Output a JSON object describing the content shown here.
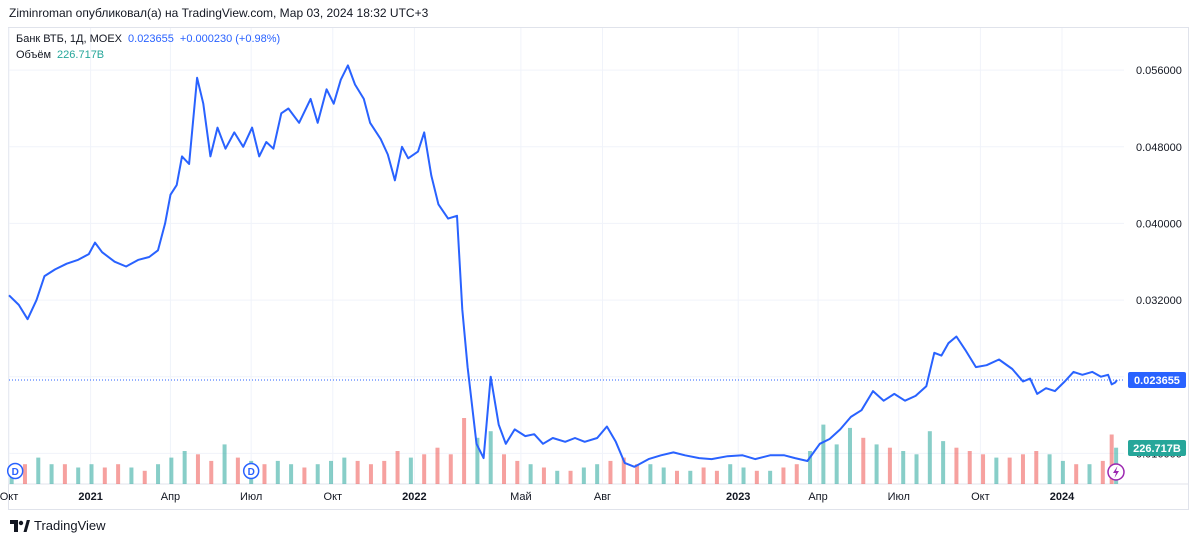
{
  "header": {
    "published_line": "Ziminroman опубликовал(а) на TradingView.com, Мар 03, 2024 18:32 UTC+3"
  },
  "legend": {
    "symbol": "Банк ВТБ, 1Д, MOEX",
    "last_value": "0.023655",
    "change": "+0.000230 (+0.98%)",
    "volume_label": "Объём",
    "volume_value": "226.717B"
  },
  "footer": {
    "brand": "TradingView"
  },
  "colors": {
    "line": "#2962ff",
    "volume_up": "#26a69a",
    "volume_down": "#ef5350",
    "grid": "#f0f3fa",
    "price_tag": "#2962ff",
    "volume_tag": "#26a69a",
    "dividend": "#2962ff",
    "lightning": "#9c27b0"
  },
  "markers": {
    "dividend_letter": "D",
    "dividend_dates": [
      "2020-10-08",
      "2021-07-01"
    ],
    "lightning_icon": "lightning-icon"
  },
  "chart_data": {
    "type": "line",
    "x_axis": {
      "range": [
        "2020-10-01",
        "2024-03-03"
      ],
      "ticks": [
        {
          "date": "2020-10-01",
          "label": "Окт"
        },
        {
          "date": "2021-01-01",
          "label": "2021"
        },
        {
          "date": "2021-04-01",
          "label": "Апр"
        },
        {
          "date": "2021-07-01",
          "label": "Июл"
        },
        {
          "date": "2021-10-01",
          "label": "Окт"
        },
        {
          "date": "2022-01-01",
          "label": "2022"
        },
        {
          "date": "2022-05-01",
          "label": "Май"
        },
        {
          "date": "2022-08-01",
          "label": "Авг"
        },
        {
          "date": "2023-01-01",
          "label": "2023"
        },
        {
          "date": "2023-04-01",
          "label": "Апр"
        },
        {
          "date": "2023-07-01",
          "label": "Июл"
        },
        {
          "date": "2023-10-01",
          "label": "Окт"
        },
        {
          "date": "2024-01-01",
          "label": "2024"
        }
      ]
    },
    "y_axis": {
      "position": "right",
      "range": [
        0.0128,
        0.0604
      ],
      "ticks": [
        "0.016000",
        "0.024000",
        "0.032000",
        "0.040000",
        "0.048000",
        "0.056000"
      ]
    },
    "grid": true,
    "last_price": 0.023655,
    "last_price_label": "0.023655",
    "volume_tag_label": "226.717B",
    "series": [
      {
        "points": [
          [
            "2020-10-01",
            0.0325
          ],
          [
            "2020-10-12",
            0.0315
          ],
          [
            "2020-10-22",
            0.03
          ],
          [
            "2020-11-01",
            0.032
          ],
          [
            "2020-11-10",
            0.0345
          ],
          [
            "2020-11-22",
            0.0352
          ],
          [
            "2020-12-05",
            0.0358
          ],
          [
            "2020-12-18",
            0.0362
          ],
          [
            "2020-12-30",
            0.0368
          ],
          [
            "2021-01-06",
            0.038
          ],
          [
            "2021-01-14",
            0.037
          ],
          [
            "2021-01-28",
            0.036
          ],
          [
            "2021-02-10",
            0.0355
          ],
          [
            "2021-02-24",
            0.0362
          ],
          [
            "2021-03-08",
            0.0365
          ],
          [
            "2021-03-18",
            0.0372
          ],
          [
            "2021-03-26",
            0.04
          ],
          [
            "2021-04-01",
            0.043
          ],
          [
            "2021-04-08",
            0.044
          ],
          [
            "2021-04-14",
            0.047
          ],
          [
            "2021-04-22",
            0.0462
          ],
          [
            "2021-05-01",
            0.0552
          ],
          [
            "2021-05-08",
            0.0525
          ],
          [
            "2021-05-16",
            0.047
          ],
          [
            "2021-05-24",
            0.05
          ],
          [
            "2021-06-02",
            0.0478
          ],
          [
            "2021-06-12",
            0.0495
          ],
          [
            "2021-06-22",
            0.048
          ],
          [
            "2021-07-02",
            0.05
          ],
          [
            "2021-07-10",
            0.047
          ],
          [
            "2021-07-18",
            0.0485
          ],
          [
            "2021-07-26",
            0.0478
          ],
          [
            "2021-08-04",
            0.0515
          ],
          [
            "2021-08-12",
            0.052
          ],
          [
            "2021-08-24",
            0.0505
          ],
          [
            "2021-09-06",
            0.053
          ],
          [
            "2021-09-14",
            0.0505
          ],
          [
            "2021-09-24",
            0.054
          ],
          [
            "2021-10-02",
            0.0525
          ],
          [
            "2021-10-10",
            0.055
          ],
          [
            "2021-10-18",
            0.0565
          ],
          [
            "2021-10-26",
            0.0545
          ],
          [
            "2021-11-05",
            0.053
          ],
          [
            "2021-11-12",
            0.0505
          ],
          [
            "2021-11-24",
            0.0488
          ],
          [
            "2021-12-02",
            0.0472
          ],
          [
            "2021-12-10",
            0.0445
          ],
          [
            "2021-12-18",
            0.048
          ],
          [
            "2021-12-25",
            0.0468
          ],
          [
            "2022-01-05",
            0.0475
          ],
          [
            "2022-01-12",
            0.0495
          ],
          [
            "2022-01-20",
            0.045
          ],
          [
            "2022-01-28",
            0.042
          ],
          [
            "2022-02-08",
            0.0405
          ],
          [
            "2022-02-18",
            0.0408
          ],
          [
            "2022-02-24",
            0.031
          ],
          [
            "2022-03-02",
            0.025
          ],
          [
            "2022-03-12",
            0.017
          ],
          [
            "2022-03-20",
            0.0155
          ],
          [
            "2022-03-28",
            0.024
          ],
          [
            "2022-04-06",
            0.019
          ],
          [
            "2022-04-14",
            0.017
          ],
          [
            "2022-04-24",
            0.0185
          ],
          [
            "2022-05-06",
            0.0178
          ],
          [
            "2022-05-16",
            0.018
          ],
          [
            "2022-05-26",
            0.017
          ],
          [
            "2022-06-06",
            0.0176
          ],
          [
            "2022-06-20",
            0.0172
          ],
          [
            "2022-07-01",
            0.0176
          ],
          [
            "2022-07-12",
            0.0172
          ],
          [
            "2022-07-26",
            0.0176
          ],
          [
            "2022-08-06",
            0.0188
          ],
          [
            "2022-08-16",
            0.0172
          ],
          [
            "2022-08-26",
            0.015
          ],
          [
            "2022-09-06",
            0.0146
          ],
          [
            "2022-09-22",
            0.0154
          ],
          [
            "2022-10-06",
            0.0158
          ],
          [
            "2022-10-20",
            0.0161
          ],
          [
            "2022-11-02",
            0.0158
          ],
          [
            "2022-11-18",
            0.0155
          ],
          [
            "2022-12-02",
            0.0154
          ],
          [
            "2022-12-20",
            0.0157
          ],
          [
            "2023-01-06",
            0.0158
          ],
          [
            "2023-01-20",
            0.0154
          ],
          [
            "2023-02-06",
            0.0158
          ],
          [
            "2023-02-22",
            0.0158
          ],
          [
            "2023-03-06",
            0.0155
          ],
          [
            "2023-03-20",
            0.0152
          ],
          [
            "2023-04-03",
            0.017
          ],
          [
            "2023-04-14",
            0.0175
          ],
          [
            "2023-04-26",
            0.0185
          ],
          [
            "2023-05-08",
            0.0198
          ],
          [
            "2023-05-20",
            0.0205
          ],
          [
            "2023-06-02",
            0.0225
          ],
          [
            "2023-06-14",
            0.0215
          ],
          [
            "2023-06-26",
            0.0222
          ],
          [
            "2023-07-08",
            0.0215
          ],
          [
            "2023-07-20",
            0.022
          ],
          [
            "2023-08-01",
            0.023
          ],
          [
            "2023-08-10",
            0.0265
          ],
          [
            "2023-08-18",
            0.0262
          ],
          [
            "2023-08-26",
            0.0275
          ],
          [
            "2023-09-04",
            0.0282
          ],
          [
            "2023-09-14",
            0.0268
          ],
          [
            "2023-09-26",
            0.025
          ],
          [
            "2023-10-08",
            0.0252
          ],
          [
            "2023-10-22",
            0.0258
          ],
          [
            "2023-11-06",
            0.0248
          ],
          [
            "2023-11-18",
            0.0235
          ],
          [
            "2023-11-26",
            0.0238
          ],
          [
            "2023-12-04",
            0.0222
          ],
          [
            "2023-12-14",
            0.0228
          ],
          [
            "2023-12-24",
            0.0225
          ],
          [
            "2024-01-04",
            0.0235
          ],
          [
            "2024-01-14",
            0.0245
          ],
          [
            "2024-01-24",
            0.0242
          ],
          [
            "2024-02-04",
            0.0245
          ],
          [
            "2024-02-14",
            0.024
          ],
          [
            "2024-02-22",
            0.0242
          ],
          [
            "2024-02-26",
            0.0232
          ],
          [
            "2024-03-01",
            0.0234
          ],
          [
            "2024-03-03",
            0.023655
          ]
        ]
      }
    ],
    "volume": {
      "label": "Объём",
      "bars": [
        [
          "2020-10-04",
          0.2,
          1
        ],
        [
          "2020-10-19",
          0.3,
          0
        ],
        [
          "2020-11-03",
          0.4,
          1
        ],
        [
          "2020-11-18",
          0.3,
          1
        ],
        [
          "2020-12-03",
          0.3,
          0
        ],
        [
          "2020-12-18",
          0.25,
          1
        ],
        [
          "2021-01-02",
          0.3,
          1
        ],
        [
          "2021-01-17",
          0.25,
          0
        ],
        [
          "2021-02-01",
          0.3,
          0
        ],
        [
          "2021-02-16",
          0.25,
          1
        ],
        [
          "2021-03-03",
          0.2,
          0
        ],
        [
          "2021-03-18",
          0.3,
          1
        ],
        [
          "2021-04-02",
          0.4,
          1
        ],
        [
          "2021-04-17",
          0.5,
          1
        ],
        [
          "2021-05-02",
          0.45,
          0
        ],
        [
          "2021-05-17",
          0.35,
          0
        ],
        [
          "2021-06-01",
          0.6,
          1
        ],
        [
          "2021-06-16",
          0.4,
          0
        ],
        [
          "2021-07-01",
          0.35,
          1
        ],
        [
          "2021-07-16",
          0.3,
          0
        ],
        [
          "2021-07-31",
          0.35,
          1
        ],
        [
          "2021-08-15",
          0.3,
          1
        ],
        [
          "2021-08-30",
          0.25,
          0
        ],
        [
          "2021-09-14",
          0.3,
          1
        ],
        [
          "2021-09-29",
          0.35,
          1
        ],
        [
          "2021-10-14",
          0.4,
          1
        ],
        [
          "2021-10-29",
          0.35,
          0
        ],
        [
          "2021-11-13",
          0.3,
          0
        ],
        [
          "2021-11-28",
          0.35,
          0
        ],
        [
          "2021-12-13",
          0.5,
          0
        ],
        [
          "2021-12-28",
          0.4,
          1
        ],
        [
          "2022-01-12",
          0.45,
          0
        ],
        [
          "2022-01-27",
          0.55,
          0
        ],
        [
          "2022-02-11",
          0.45,
          0
        ],
        [
          "2022-02-26",
          1.0,
          0
        ],
        [
          "2022-03-13",
          0.7,
          1
        ],
        [
          "2022-03-28",
          0.8,
          1
        ],
        [
          "2022-04-12",
          0.45,
          0
        ],
        [
          "2022-04-27",
          0.35,
          0
        ],
        [
          "2022-05-12",
          0.3,
          1
        ],
        [
          "2022-05-27",
          0.25,
          0
        ],
        [
          "2022-06-11",
          0.2,
          1
        ],
        [
          "2022-06-26",
          0.2,
          0
        ],
        [
          "2022-07-11",
          0.25,
          1
        ],
        [
          "2022-07-26",
          0.3,
          1
        ],
        [
          "2022-08-10",
          0.35,
          0
        ],
        [
          "2022-08-25",
          0.4,
          0
        ],
        [
          "2022-09-09",
          0.3,
          0
        ],
        [
          "2022-09-24",
          0.3,
          1
        ],
        [
          "2022-10-09",
          0.25,
          1
        ],
        [
          "2022-10-24",
          0.2,
          0
        ],
        [
          "2022-11-08",
          0.2,
          1
        ],
        [
          "2022-11-23",
          0.25,
          0
        ],
        [
          "2022-12-08",
          0.2,
          0
        ],
        [
          "2022-12-23",
          0.3,
          1
        ],
        [
          "2023-01-07",
          0.25,
          1
        ],
        [
          "2023-01-22",
          0.2,
          0
        ],
        [
          "2023-02-06",
          0.2,
          1
        ],
        [
          "2023-02-21",
          0.25,
          0
        ],
        [
          "2023-03-08",
          0.3,
          0
        ],
        [
          "2023-03-23",
          0.5,
          1
        ],
        [
          "2023-04-07",
          0.9,
          1
        ],
        [
          "2023-04-22",
          0.6,
          1
        ],
        [
          "2023-05-07",
          0.85,
          1
        ],
        [
          "2023-05-22",
          0.7,
          0
        ],
        [
          "2023-06-06",
          0.6,
          1
        ],
        [
          "2023-06-21",
          0.55,
          0
        ],
        [
          "2023-07-06",
          0.5,
          1
        ],
        [
          "2023-07-21",
          0.45,
          1
        ],
        [
          "2023-08-05",
          0.8,
          1
        ],
        [
          "2023-08-20",
          0.65,
          1
        ],
        [
          "2023-09-04",
          0.55,
          0
        ],
        [
          "2023-09-19",
          0.5,
          0
        ],
        [
          "2023-10-04",
          0.45,
          0
        ],
        [
          "2023-10-19",
          0.4,
          1
        ],
        [
          "2023-11-03",
          0.4,
          0
        ],
        [
          "2023-11-18",
          0.45,
          0
        ],
        [
          "2023-12-03",
          0.5,
          0
        ],
        [
          "2023-12-18",
          0.45,
          1
        ],
        [
          "2024-01-02",
          0.35,
          1
        ],
        [
          "2024-01-17",
          0.3,
          0
        ],
        [
          "2024-02-01",
          0.3,
          1
        ],
        [
          "2024-02-16",
          0.35,
          0
        ],
        [
          "2024-02-26",
          0.75,
          0
        ],
        [
          "2024-03-02",
          0.55,
          1
        ]
      ]
    }
  }
}
